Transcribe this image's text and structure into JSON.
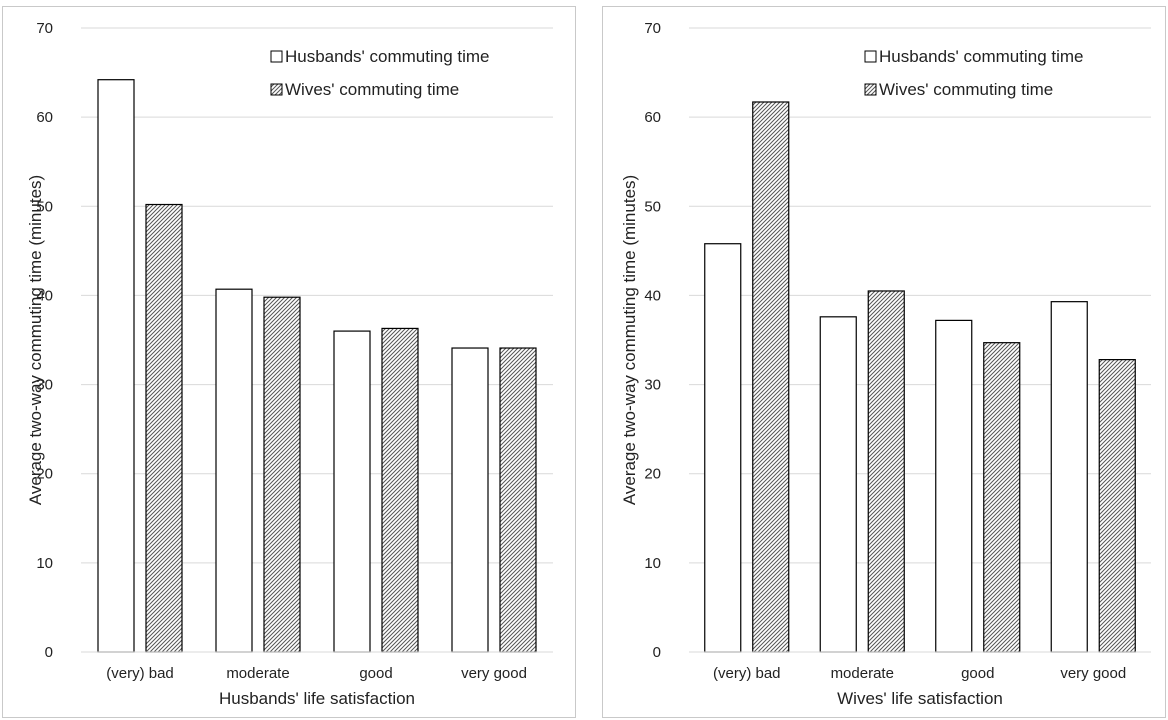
{
  "chart_data": [
    {
      "type": "bar",
      "categories": [
        "(very) bad",
        "moderate",
        "good",
        "very good"
      ],
      "series": [
        {
          "name": "Husbands' commuting time",
          "values": [
            64.2,
            40.7,
            36.0,
            34.1
          ]
        },
        {
          "name": "Wives' commuting time",
          "values": [
            50.2,
            39.8,
            36.3,
            34.1
          ]
        }
      ],
      "xlabel": "Husbands' life satisfaction",
      "ylabel": "Average two-way commuting time (minutes)",
      "ylim": [
        0,
        70
      ],
      "yticks": [
        0,
        10,
        20,
        30,
        40,
        50,
        60,
        70
      ],
      "grid": true,
      "legend": "top-right",
      "colors": {
        "husbands_fill": "#ffffff",
        "wives_hatch": "#555555",
        "bar_stroke": "#000000",
        "grid": "#d9d9d9"
      }
    },
    {
      "type": "bar",
      "categories": [
        "(very) bad",
        "moderate",
        "good",
        "very good"
      ],
      "series": [
        {
          "name": "Husbands' commuting time",
          "values": [
            45.8,
            37.6,
            37.2,
            39.3
          ]
        },
        {
          "name": "Wives' commuting time",
          "values": [
            61.7,
            40.5,
            34.7,
            32.8
          ]
        }
      ],
      "xlabel": "Wives' life satisfaction",
      "ylabel": "Average two-way commuting time (minutes)",
      "ylim": [
        0,
        70
      ],
      "yticks": [
        0,
        10,
        20,
        30,
        40,
        50,
        60,
        70
      ],
      "grid": true,
      "legend": "top-right",
      "colors": {
        "husbands_fill": "#ffffff",
        "wives_hatch": "#555555",
        "bar_stroke": "#000000",
        "grid": "#d9d9d9"
      }
    }
  ]
}
